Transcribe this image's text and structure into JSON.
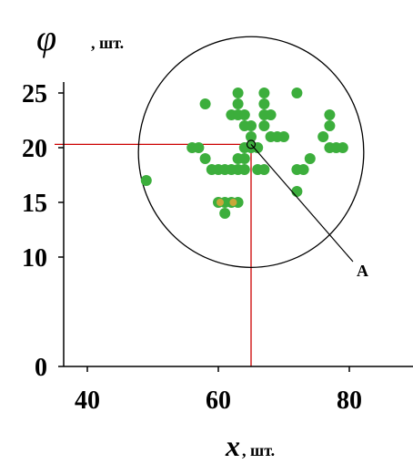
{
  "chart_data": {
    "type": "scatter",
    "title": "",
    "ylabel_symbol": "φ",
    "ylabel_unit": ", шт.",
    "xlabel_symbol": "x",
    "xlabel_unit": ", шт.",
    "xticks": [
      40,
      60,
      80
    ],
    "yticks": [
      0,
      10,
      15,
      20,
      25
    ],
    "xlim": [
      36,
      90
    ],
    "ylim": [
      0,
      26.5
    ],
    "grid": false,
    "colors": {
      "points": "#3cae3c",
      "orange_points": "#e0a63a",
      "guides": "#cc0000",
      "axes": "#000000"
    },
    "points": [
      [
        49,
        17
      ],
      [
        56,
        20
      ],
      [
        57,
        20
      ],
      [
        58,
        24
      ],
      [
        58,
        19
      ],
      [
        59,
        18
      ],
      [
        60,
        18
      ],
      [
        61,
        18
      ],
      [
        62,
        18
      ],
      [
        63,
        18
      ],
      [
        64,
        18
      ],
      [
        60,
        15
      ],
      [
        61,
        15
      ],
      [
        62,
        15
      ],
      [
        63,
        15
      ],
      [
        61,
        14
      ],
      [
        62,
        23
      ],
      [
        63,
        23
      ],
      [
        64,
        23
      ],
      [
        63,
        25
      ],
      [
        63,
        24
      ],
      [
        63,
        19
      ],
      [
        64,
        22
      ],
      [
        65,
        22
      ],
      [
        65,
        21
      ],
      [
        64,
        20
      ],
      [
        64,
        19
      ],
      [
        65,
        20
      ],
      [
        66,
        20
      ],
      [
        66,
        18
      ],
      [
        67,
        18
      ],
      [
        67,
        25
      ],
      [
        67,
        24
      ],
      [
        67,
        23
      ],
      [
        68,
        23
      ],
      [
        68,
        21
      ],
      [
        67,
        22
      ],
      [
        69,
        21
      ],
      [
        70,
        21
      ],
      [
        72,
        25
      ],
      [
        72,
        18
      ],
      [
        73,
        18
      ],
      [
        74,
        19
      ],
      [
        72,
        16
      ],
      [
        76,
        21
      ],
      [
        77,
        23
      ],
      [
        77,
        22
      ],
      [
        77,
        20
      ],
      [
        78,
        20
      ],
      [
        79,
        20
      ]
    ],
    "orange_points": [
      [
        60,
        15
      ],
      [
        62,
        15
      ]
    ],
    "highlight": {
      "x": 65,
      "y": 20.3,
      "label": "A"
    },
    "circle": {
      "cx": 65,
      "cy": 19.6,
      "rx": 17.2,
      "ry": 5.7
    },
    "guide": {
      "x": 65,
      "y": 20.3
    }
  }
}
